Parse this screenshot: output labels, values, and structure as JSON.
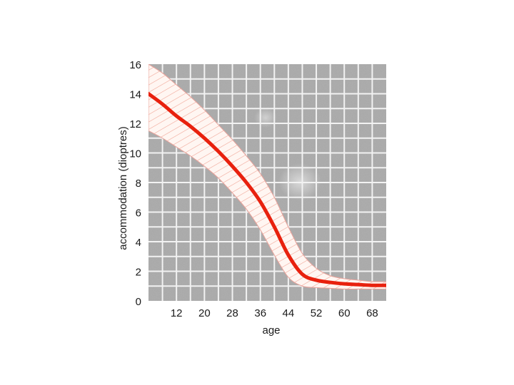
{
  "chart_data": {
    "type": "line",
    "title": "",
    "xlabel": "age",
    "ylabel": "accommodation (dioptres)",
    "xlim": [
      4,
      72
    ],
    "ylim": [
      0,
      16
    ],
    "x_ticks": [
      12,
      20,
      28,
      36,
      44,
      52,
      60,
      68
    ],
    "y_ticks": [
      0,
      2,
      4,
      6,
      8,
      10,
      12,
      14,
      16
    ],
    "grid": true,
    "legend": "none",
    "series": [
      {
        "type": "line",
        "x": [
          4,
          8,
          12,
          16,
          20,
          24,
          28,
          32,
          36,
          40,
          44,
          48,
          52,
          56,
          60,
          64,
          68,
          72
        ],
        "values": [
          14.0,
          13.3,
          12.5,
          11.8,
          11.0,
          10.1,
          9.1,
          8.0,
          6.7,
          5.0,
          3.1,
          1.8,
          1.4,
          1.25,
          1.15,
          1.1,
          1.05,
          1.05
        ]
      },
      {
        "type": "band",
        "x": [
          4,
          8,
          12,
          16,
          20,
          24,
          28,
          32,
          36,
          40,
          44,
          48,
          52,
          56,
          60,
          64,
          68,
          72
        ],
        "upper": [
          16.0,
          15.4,
          14.6,
          13.8,
          12.9,
          11.9,
          10.9,
          9.8,
          8.6,
          7.0,
          5.0,
          3.2,
          2.2,
          1.7,
          1.5,
          1.4,
          1.3,
          1.3
        ],
        "lower": [
          11.5,
          11.0,
          10.4,
          9.8,
          9.1,
          8.3,
          7.3,
          6.2,
          4.8,
          3.1,
          1.6,
          1.0,
          0.9,
          0.85,
          0.8,
          0.8,
          0.8,
          0.8
        ]
      }
    ],
    "colors": {
      "line": "#e8210e",
      "band_fill": "#fff6f2",
      "band_hatch": "#f0a090",
      "band_edge": "#e9a29a",
      "plot_background": "#a8a8a8",
      "grid": "#f2f2f2"
    }
  }
}
